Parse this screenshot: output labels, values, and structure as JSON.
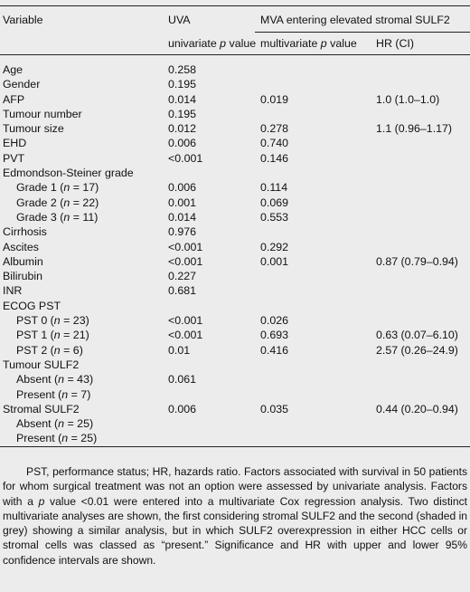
{
  "header": {
    "variable": "Variable",
    "uva": "UVA",
    "mva": "MVA entering elevated stromal SULF2",
    "univariate_p_pre": "univariate ",
    "p": "p",
    "value": " value",
    "multivariate_p_pre": "multivariate ",
    "hr": "HR (CI)"
  },
  "rows": [
    {
      "label": "Age",
      "uva": "0.258",
      "mva": "",
      "hr": ""
    },
    {
      "label": "Gender",
      "uva": "0.195",
      "mva": "",
      "hr": ""
    },
    {
      "label": "AFP",
      "uva": "0.014",
      "mva": "0.019",
      "hr": "1.0 (1.0–1.0)"
    },
    {
      "label": "Tumour number",
      "uva": "0.195",
      "mva": "",
      "hr": ""
    },
    {
      "label": "Tumour size",
      "uva": "0.012",
      "mva": "0.278",
      "hr": "1.1 (0.96–1.17)"
    },
    {
      "label": "EHD",
      "uva": "0.006",
      "mva": "0.740",
      "hr": ""
    },
    {
      "label": "PVT",
      "uva": "<0.001",
      "mva": "0.146",
      "hr": ""
    },
    {
      "label": "Edmondson-Steiner grade",
      "uva": "",
      "mva": "",
      "hr": ""
    },
    {
      "label_pre": "Grade 1 (",
      "n": "n",
      "label_post": " = 17)",
      "uva": "0.006",
      "mva": "0.114",
      "hr": ""
    },
    {
      "label_pre": "Grade 2 (",
      "n": "n",
      "label_post": " = 22)",
      "uva": "0.001",
      "mva": "0.069",
      "hr": ""
    },
    {
      "label_pre": "Grade 3 (",
      "n": "n",
      "label_post": " = 11)",
      "uva": "0.014",
      "mva": "0.553",
      "hr": ""
    },
    {
      "label": "Cirrhosis",
      "uva": "0.976",
      "mva": "",
      "hr": ""
    },
    {
      "label": "Ascites",
      "uva": "<0.001",
      "mva": "0.292",
      "hr": ""
    },
    {
      "label": "Albumin",
      "uva": "<0.001",
      "mva": "0.001",
      "hr": "0.87 (0.79–0.94)"
    },
    {
      "label": "Bilirubin",
      "uva": "0.227",
      "mva": "",
      "hr": ""
    },
    {
      "label": "INR",
      "uva": "0.681",
      "mva": "",
      "hr": ""
    },
    {
      "label": "ECOG PST",
      "uva": "",
      "mva": "",
      "hr": ""
    },
    {
      "label_pre": "PST 0 (",
      "n": "n",
      "label_post": " = 23)",
      "uva": "<0.001",
      "mva": "0.026",
      "hr": ""
    },
    {
      "label_pre": "PST 1 (",
      "n": "n",
      "label_post": " = 21)",
      "uva": "<0.001",
      "mva": "0.693",
      "hr": "0.63 (0.07–6.10)"
    },
    {
      "label_pre": "PST 2 (",
      "n": "n",
      "label_post": " = 6)",
      "uva": "0.01",
      "mva": "0.416",
      "hr": "2.57 (0.26–24.9)"
    },
    {
      "label": "Tumour SULF2",
      "uva": "",
      "mva": "",
      "hr": ""
    },
    {
      "label_pre": "Absent (",
      "n": "n",
      "label_post": " = 43)",
      "uva": "0.061",
      "mva": "",
      "hr": ""
    },
    {
      "label_pre": "Present (",
      "n": "n",
      "label_post": " = 7)",
      "uva": "",
      "mva": "",
      "hr": ""
    },
    {
      "label": "Stromal SULF2",
      "uva": "0.006",
      "mva": "0.035",
      "hr": "0.44 (0.20–0.94)"
    },
    {
      "label_pre": "Absent (",
      "n": "n",
      "label_post": " = 25)",
      "uva": "",
      "mva": "",
      "hr": ""
    },
    {
      "label_pre": "Present (",
      "n": "n",
      "label_post": " = 25)",
      "uva": "",
      "mva": "",
      "hr": ""
    }
  ],
  "footnote": {
    "part1": "PST, performance status; HR, hazards ratio. Factors associated with survival in 50 patients for whom surgical treatment was not an option were assessed by univariate analysis. Factors with a ",
    "p": "p",
    "part2": " value <0.01 were entered into a multivariate Cox regression analysis. Two distinct multivariate analyses are shown, the first considering stromal SULF2 and the second (shaded in grey) showing a similar analysis, but in which SULF2 overexpression in either HCC cells or stromal cells was classed as “present.” Significance and HR with upper and lower 95% confidence intervals are shown."
  }
}
